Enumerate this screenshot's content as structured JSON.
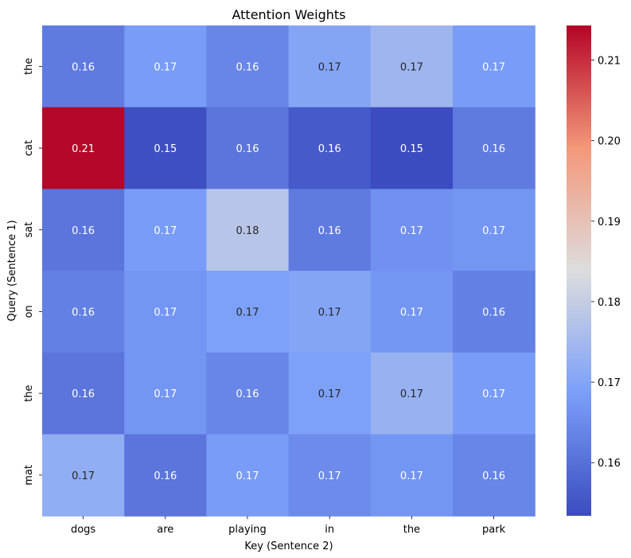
{
  "chart_data": {
    "type": "heatmap",
    "title": "Attention Weights",
    "xlabel": "Key (Sentence 2)",
    "ylabel": "Query (Sentence 1)",
    "x_categories": [
      "dogs",
      "are",
      "playing",
      "in",
      "the",
      "park"
    ],
    "y_categories": [
      "the",
      "cat",
      "sat",
      "on",
      "the",
      "mat"
    ],
    "values": [
      [
        0.162,
        0.168,
        0.164,
        0.17,
        0.174,
        0.168
      ],
      [
        0.214,
        0.154,
        0.161,
        0.156,
        0.153,
        0.162
      ],
      [
        0.161,
        0.168,
        0.178,
        0.162,
        0.166,
        0.167
      ],
      [
        0.163,
        0.167,
        0.169,
        0.17,
        0.167,
        0.163
      ],
      [
        0.161,
        0.167,
        0.164,
        0.169,
        0.173,
        0.168
      ],
      [
        0.172,
        0.161,
        0.168,
        0.165,
        0.167,
        0.164
      ]
    ],
    "annotations": [
      [
        "0.16",
        "0.17",
        "0.16",
        "0.17",
        "0.17",
        "0.17"
      ],
      [
        "0.21",
        "0.15",
        "0.16",
        "0.16",
        "0.15",
        "0.16"
      ],
      [
        "0.16",
        "0.17",
        "0.18",
        "0.16",
        "0.17",
        "0.17"
      ],
      [
        "0.16",
        "0.17",
        "0.17",
        "0.17",
        "0.17",
        "0.16"
      ],
      [
        "0.16",
        "0.17",
        "0.16",
        "0.17",
        "0.17",
        "0.17"
      ],
      [
        "0.17",
        "0.16",
        "0.17",
        "0.17",
        "0.17",
        "0.16"
      ]
    ],
    "colormap": "coolwarm",
    "colorbar": {
      "range": [
        0.1534,
        0.2143
      ],
      "ticks": [
        0.16,
        0.17,
        0.18,
        0.19,
        0.2,
        0.21
      ],
      "tick_labels": [
        "0.16",
        "0.17",
        "0.18",
        "0.19",
        "0.20",
        "0.21"
      ]
    }
  }
}
